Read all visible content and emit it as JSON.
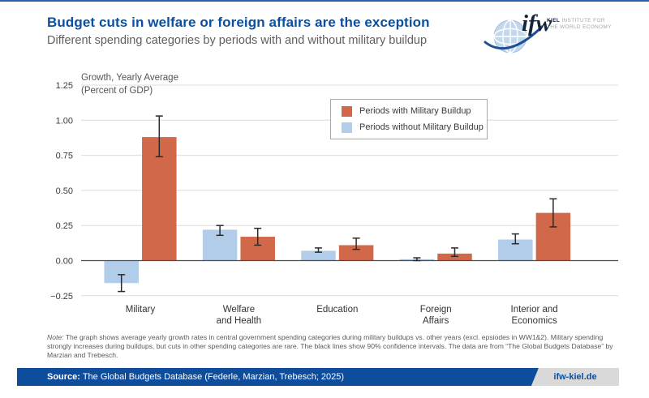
{
  "header": {
    "title": "Budget cuts in welfare or foreign affairs are the exception",
    "subtitle": "Different spending categories by periods with and without military buildup"
  },
  "logo": {
    "ifw": "ifw",
    "institute_bold": "KIEL",
    "institute_rest": " INSTITUTE FOR",
    "institute_line2": "THE WORLD ECONOMY"
  },
  "chart_data": {
    "type": "bar",
    "title": "",
    "axis_title": [
      "Growth, Yearly Average",
      "(Percent of GDP)"
    ],
    "categories": [
      "Military",
      "Welfare and Health",
      "Education",
      "Foreign Affairs",
      "Interior and Economics"
    ],
    "category_label_lines": [
      [
        "Military"
      ],
      [
        "Welfare",
        "and Health"
      ],
      [
        "Education"
      ],
      [
        "Foreign",
        "Affairs"
      ],
      [
        "Interior and",
        "Economics"
      ]
    ],
    "series": [
      {
        "name": "Periods without Military Buildup",
        "color": "#b1cdea",
        "values": [
          -0.16,
          0.22,
          0.07,
          0.01,
          0.15
        ],
        "ci_low": [
          -0.22,
          0.18,
          0.06,
          0.0,
          0.12
        ],
        "ci_high": [
          -0.1,
          0.25,
          0.09,
          0.02,
          0.19
        ]
      },
      {
        "name": "Periods with Military Buildup",
        "color": "#d2684a",
        "values": [
          0.88,
          0.17,
          0.11,
          0.05,
          0.34
        ],
        "ci_low": [
          0.74,
          0.11,
          0.08,
          0.03,
          0.24
        ],
        "ci_high": [
          1.03,
          0.23,
          0.16,
          0.09,
          0.44
        ]
      }
    ],
    "y_ticks": [
      -0.25,
      0,
      0.25,
      0.5,
      0.75,
      1,
      1.25
    ],
    "y_tick_labels": [
      "−0.25",
      "0.00",
      "0.25",
      "0.50",
      "0.75",
      "1.00",
      "1.25"
    ],
    "ylim": [
      -0.25,
      1.25
    ],
    "grid": true,
    "legend_position": "inside-top-center",
    "error_bars": "90% confidence intervals",
    "colors": {
      "grid": "#dcdcdc",
      "zero_line": "#4d4d4d",
      "error": "#2b2b2b",
      "tick_text": "#3a3a3a",
      "axis_title_text": "#555555"
    }
  },
  "legend": {
    "items": [
      {
        "label": "Periods with Military Buildup",
        "color": "#d2684a"
      },
      {
        "label": "Periods without Military Buildup",
        "color": "#b1cdea"
      }
    ]
  },
  "note": {
    "label": "Note:",
    "text": " The graph shows average yearly growth rates in central government spending categories during military buildups vs. other years (excl. epsiodes in WW1&2). Military spending strongly increases during buildups, but cuts in other spending categories are rare. The black lines show 90% confidence intervals. The data are from “The Global Budgets Database” by Marzian and Trebesch."
  },
  "footer": {
    "source_label": "Source:",
    "source_text": " The Global Budgets Database (Federle, Marzian, Trebesch; 2025)",
    "website": "ifw-kiel.de"
  }
}
